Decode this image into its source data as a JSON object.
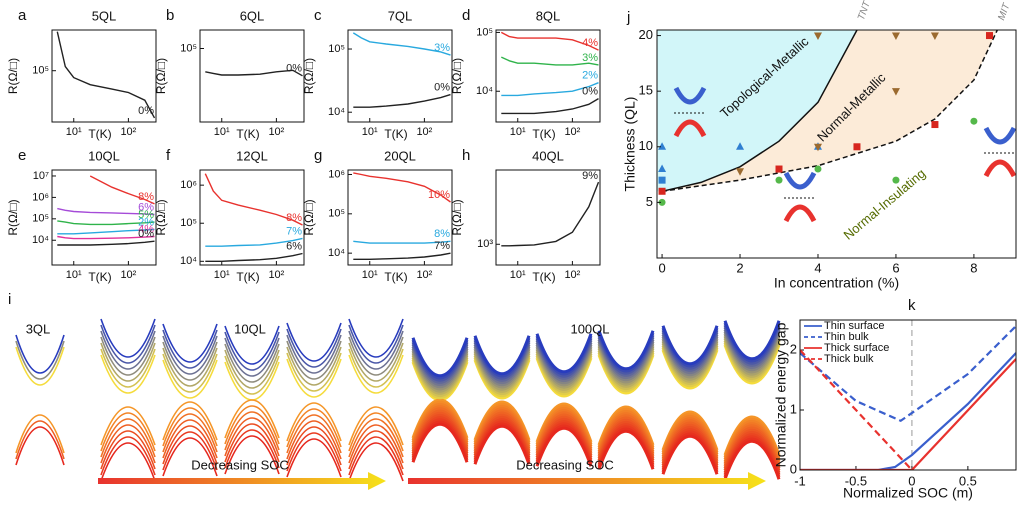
{
  "chart_data": [
    {
      "type": "line",
      "panel_label": "a",
      "title": "5QL",
      "x_label": "T(K)",
      "y_label": "R(Ω/□)",
      "log_x": true,
      "log_y": true,
      "x": [
        5,
        7,
        10,
        20,
        50,
        100,
        200,
        300
      ],
      "xlim": [
        4,
        320
      ],
      "xticks": [
        {
          "value": 10,
          "label": "10¹"
        },
        {
          "value": 100,
          "label": "10²"
        }
      ],
      "ylim": [
        30000,
        260000
      ],
      "yticks": [
        {
          "value": 100000,
          "label": "10⁵"
        }
      ],
      "series": [
        {
          "name": "0%",
          "color": "#222222",
          "values": [
            250000,
            110000,
            85000,
            72000,
            65000,
            60000,
            50000,
            33000
          ]
        }
      ]
    },
    {
      "type": "line",
      "panel_label": "b",
      "title": "6QL",
      "x_label": "T(K)",
      "y_label": "R(Ω/□)",
      "log_x": true,
      "log_y": true,
      "x": [
        5,
        7,
        10,
        20,
        50,
        100,
        200,
        300
      ],
      "xlim": [
        4,
        320
      ],
      "xticks": [
        {
          "value": 10,
          "label": "10¹"
        },
        {
          "value": 100,
          "label": "10²"
        }
      ],
      "ylim": [
        20000,
        150000
      ],
      "yticks": [
        {
          "value": 100000,
          "label": "10⁵"
        }
      ],
      "series": [
        {
          "name": "0%",
          "color": "#222222",
          "values": [
            60000,
            58000,
            56000,
            56000,
            57000,
            60000,
            62000,
            55000
          ]
        }
      ]
    },
    {
      "type": "line",
      "panel_label": "c",
      "title": "7QL",
      "x_label": "T(K)",
      "y_label": "R(Ω/□)",
      "log_x": true,
      "log_y": true,
      "x": [
        5,
        7,
        10,
        20,
        50,
        100,
        200,
        300
      ],
      "xlim": [
        4,
        320
      ],
      "xticks": [
        {
          "value": 10,
          "label": "10¹"
        },
        {
          "value": 100,
          "label": "10²"
        }
      ],
      "ylim": [
        7000,
        200000
      ],
      "yticks": [
        {
          "value": 10000,
          "label": "10⁴"
        },
        {
          "value": 100000,
          "label": "10⁵"
        }
      ],
      "series": [
        {
          "name": "3%",
          "color": "#29a9df",
          "values": [
            180000,
            150000,
            130000,
            120000,
            110000,
            100000,
            90000,
            80000
          ]
        },
        {
          "name": "0%",
          "color": "#222222",
          "values": [
            12000,
            12000,
            12000,
            12500,
            13500,
            15000,
            17000,
            19000
          ]
        }
      ]
    },
    {
      "type": "line",
      "panel_label": "d",
      "title": "8QL",
      "x_label": "T(K)",
      "y_label": "R(Ω/□)",
      "log_x": true,
      "log_y": true,
      "x": [
        5,
        7,
        10,
        20,
        50,
        100,
        200,
        300
      ],
      "xlim": [
        4,
        320
      ],
      "xticks": [
        {
          "value": 10,
          "label": "10¹"
        },
        {
          "value": 100,
          "label": "10²"
        }
      ],
      "ylim": [
        3000,
        110000
      ],
      "yticks": [
        {
          "value": 10000,
          "label": "10⁴"
        },
        {
          "value": 100000,
          "label": "10⁵"
        }
      ],
      "series": [
        {
          "name": "4%",
          "color": "#e8322e",
          "values": [
            100000,
            85000,
            80000,
            80000,
            80000,
            75000,
            60000,
            50000
          ]
        },
        {
          "name": "3%",
          "color": "#2fb34a",
          "values": [
            38000,
            33000,
            30000,
            30000,
            28000,
            28000,
            30000,
            28000
          ]
        },
        {
          "name": "2%",
          "color": "#29a9df",
          "values": [
            8500,
            8500,
            8500,
            9000,
            9500,
            10000,
            12000,
            14000
          ]
        },
        {
          "name": "0%",
          "color": "#222222",
          "values": [
            4200,
            4200,
            4200,
            4200,
            4500,
            5000,
            6000,
            7500
          ]
        }
      ]
    },
    {
      "type": "line",
      "panel_label": "e",
      "title": "10QL",
      "x_label": "T(K)",
      "y_label": "R(Ω/□)",
      "log_x": true,
      "log_y": true,
      "x": [
        5,
        7,
        10,
        20,
        50,
        100,
        200,
        300
      ],
      "xlim": [
        4,
        320
      ],
      "xticks": [
        {
          "value": 10,
          "label": "10¹"
        },
        {
          "value": 100,
          "label": "10²"
        }
      ],
      "ylim": [
        700,
        19000000
      ],
      "yticks": [
        {
          "value": 10000,
          "label": "10⁴"
        },
        {
          "value": 100000,
          "label": "10⁵"
        },
        {
          "value": 1000000,
          "label": "10⁶"
        },
        {
          "value": 10000000,
          "label": "10⁷"
        }
      ],
      "series": [
        {
          "name": "8%",
          "color": "#e8322e",
          "values": [
            null,
            null,
            null,
            10000000,
            3000000,
            1500000,
            800000,
            500000
          ]
        },
        {
          "name": "6%",
          "color": "#a54bd8",
          "values": [
            300000,
            250000,
            220000,
            200000,
            190000,
            180000,
            170000,
            160000
          ]
        },
        {
          "name": "5%",
          "color": "#2fb34a",
          "values": [
            80000,
            70000,
            60000,
            55000,
            55000,
            60000,
            65000,
            70000
          ]
        },
        {
          "name": "2%",
          "color": "#29a9df",
          "values": [
            20000,
            20000,
            20000,
            22000,
            25000,
            28000,
            30000,
            32000
          ]
        },
        {
          "name": "4%",
          "color": "#e0309a",
          "values": [
            15000,
            13000,
            12000,
            12000,
            12500,
            13000,
            14000,
            15000
          ]
        },
        {
          "name": "0%",
          "color": "#222222",
          "values": [
            6000,
            6000,
            6000,
            6000,
            6500,
            7000,
            8000,
            9000
          ]
        }
      ]
    },
    {
      "type": "line",
      "panel_label": "f",
      "title": "12QL",
      "x_label": "T(K)",
      "y_label": "R(Ω/□)",
      "log_x": true,
      "log_y": true,
      "x": [
        5,
        7,
        10,
        20,
        50,
        100,
        200,
        300
      ],
      "xlim": [
        4,
        320
      ],
      "xticks": [
        {
          "value": 10,
          "label": "10¹"
        },
        {
          "value": 100,
          "label": "10²"
        }
      ],
      "ylim": [
        8000,
        2500000
      ],
      "yticks": [
        {
          "value": 10000,
          "label": "10⁴"
        },
        {
          "value": 100000,
          "label": "10⁵"
        },
        {
          "value": 1000000,
          "label": "10⁶"
        }
      ],
      "series": [
        {
          "name": "8%",
          "color": "#e8322e",
          "values": [
            2000000,
            700000,
            400000,
            300000,
            220000,
            170000,
            120000,
            90000
          ]
        },
        {
          "name": "7%",
          "color": "#29a9df",
          "values": [
            25000,
            25000,
            25000,
            26000,
            27000,
            30000,
            35000,
            40000
          ]
        },
        {
          "name": "6%",
          "color": "#222222",
          "values": [
            10000,
            10000,
            10000,
            10500,
            11000,
            12000,
            14000,
            16000
          ]
        }
      ]
    },
    {
      "type": "line",
      "panel_label": "g",
      "title": "20QL",
      "x_label": "T(K)",
      "y_label": "R(Ω/□)",
      "log_x": true,
      "log_y": true,
      "x": [
        5,
        7,
        10,
        20,
        50,
        100,
        200,
        300
      ],
      "xlim": [
        4,
        320
      ],
      "xticks": [
        {
          "value": 10,
          "label": "10¹"
        },
        {
          "value": 100,
          "label": "10²"
        }
      ],
      "ylim": [
        5000,
        1300000
      ],
      "yticks": [
        {
          "value": 10000,
          "label": "10⁴"
        },
        {
          "value": 100000,
          "label": "10⁵"
        },
        {
          "value": 1000000,
          "label": "10⁶"
        }
      ],
      "series": [
        {
          "name": "10%",
          "color": "#e8322e",
          "values": [
            1100000,
            1000000,
            900000,
            800000,
            650000,
            500000,
            300000,
            200000
          ]
        },
        {
          "name": "8%",
          "color": "#29a9df",
          "values": [
            20000,
            19000,
            18000,
            18000,
            18000,
            18000,
            19000,
            20000
          ]
        },
        {
          "name": "7%",
          "color": "#222222",
          "values": [
            7000,
            7000,
            7000,
            7200,
            7500,
            8000,
            9000,
            10000
          ]
        }
      ]
    },
    {
      "type": "line",
      "panel_label": "h",
      "title": "40QL",
      "x_label": "T(K)",
      "y_label": "R(Ω/□)",
      "log_x": true,
      "log_y": true,
      "x": [
        5,
        7,
        10,
        20,
        50,
        100,
        200,
        300
      ],
      "xlim": [
        4,
        320
      ],
      "xticks": [
        {
          "value": 10,
          "label": "10¹"
        },
        {
          "value": 100,
          "label": "10²"
        }
      ],
      "ylim": [
        500,
        12000
      ],
      "yticks": [
        {
          "value": 1000,
          "label": "10³"
        }
      ],
      "series": [
        {
          "name": "9%",
          "color": "#222222",
          "values": [
            950,
            950,
            960,
            980,
            1100,
            1500,
            3500,
            8000
          ]
        }
      ]
    },
    {
      "type": "phase",
      "panel_label": "j",
      "x_label": "In concentration (%)",
      "y_label": "Thickness (QL)",
      "xlim": [
        -0.13,
        9.08
      ],
      "xticks": [
        0,
        2,
        4,
        6,
        8
      ],
      "ylim": [
        0,
        20.5
      ],
      "yticks": [
        5,
        10,
        15,
        20
      ],
      "boundaries": [
        {
          "name": "TNT",
          "dashed": false,
          "fill": "#d2f6f9",
          "x": [
            0,
            1,
            2,
            3,
            4,
            5
          ],
          "y": [
            6,
            6.8,
            8.2,
            10.5,
            14,
            20.5
          ]
        },
        {
          "name": "MIT",
          "dashed": true,
          "fill": "#fcebd8",
          "x": [
            0,
            2,
            4,
            6,
            7,
            8,
            8.6
          ],
          "y": [
            6,
            7,
            8.3,
            10.5,
            12.5,
            16,
            20.5
          ]
        }
      ],
      "regions": [
        "Topological-Metallic",
        "Normal-Metallic",
        "Normal-Insulating"
      ],
      "markers": [
        {
          "shape": "triangle",
          "color": "#2f7fd1",
          "x": [
            0,
            0,
            2,
            4
          ],
          "y": [
            10,
            8,
            10,
            10
          ]
        },
        {
          "shape": "square",
          "color": "#2f7fd1",
          "x": [
            0
          ],
          "y": [
            7
          ]
        },
        {
          "shape": "tridown",
          "color": "#9b6a2f",
          "x": [
            2,
            4,
            6,
            4,
            6,
            7
          ],
          "y": [
            7.8,
            10,
            15,
            20,
            20,
            20
          ]
        },
        {
          "shape": "square",
          "color": "#d7261e",
          "x": [
            0,
            3,
            5,
            7,
            8.4
          ],
          "y": [
            6,
            8,
            10,
            12,
            20
          ]
        },
        {
          "shape": "circle",
          "color": "#55b84a",
          "x": [
            0,
            3,
            4,
            6,
            8
          ],
          "y": [
            5,
            7,
            8,
            7,
            12.3
          ]
        }
      ]
    },
    {
      "type": "line",
      "panel_label": "k",
      "x_label": "Normalized SOC (m)",
      "y_label": "Normalized energy gap",
      "legend": "upper left",
      "xlim": [
        -1,
        0.93
      ],
      "xticks": [
        -1,
        -0.5,
        0,
        0.5
      ],
      "ylim": [
        0,
        2.5
      ],
      "yticks": [
        0,
        1,
        2
      ],
      "vline": 0,
      "series": [
        {
          "name": "Thin surface",
          "color": "#3a5fcd",
          "dashed": false,
          "x": [
            -1,
            -0.3,
            -0.15,
            0,
            0.5,
            0.93
          ],
          "values": [
            0,
            0,
            0.05,
            0.25,
            1.1,
            1.95
          ]
        },
        {
          "name": "Thin bulk",
          "color": "#3a5fcd",
          "dashed": true,
          "x": [
            -1,
            -0.5,
            -0.1,
            0.5,
            0.93
          ],
          "values": [
            1.95,
            1.15,
            0.82,
            1.6,
            2.4
          ]
        },
        {
          "name": "Thick surface",
          "color": "#e8322e",
          "dashed": false,
          "x": [
            -1,
            0,
            0.93
          ],
          "values": [
            0,
            0,
            1.85
          ]
        },
        {
          "name": "Thick bulk",
          "color": "#e8322e",
          "dashed": true,
          "x": [
            -1,
            0
          ],
          "values": [
            2,
            0
          ]
        }
      ]
    }
  ],
  "band_panel": {
    "panel_label": "i",
    "titles": [
      "3QL",
      "10QL",
      "100QL"
    ],
    "arrow_labels": [
      "Decreasing SOC",
      "Decreasing SOC"
    ]
  }
}
